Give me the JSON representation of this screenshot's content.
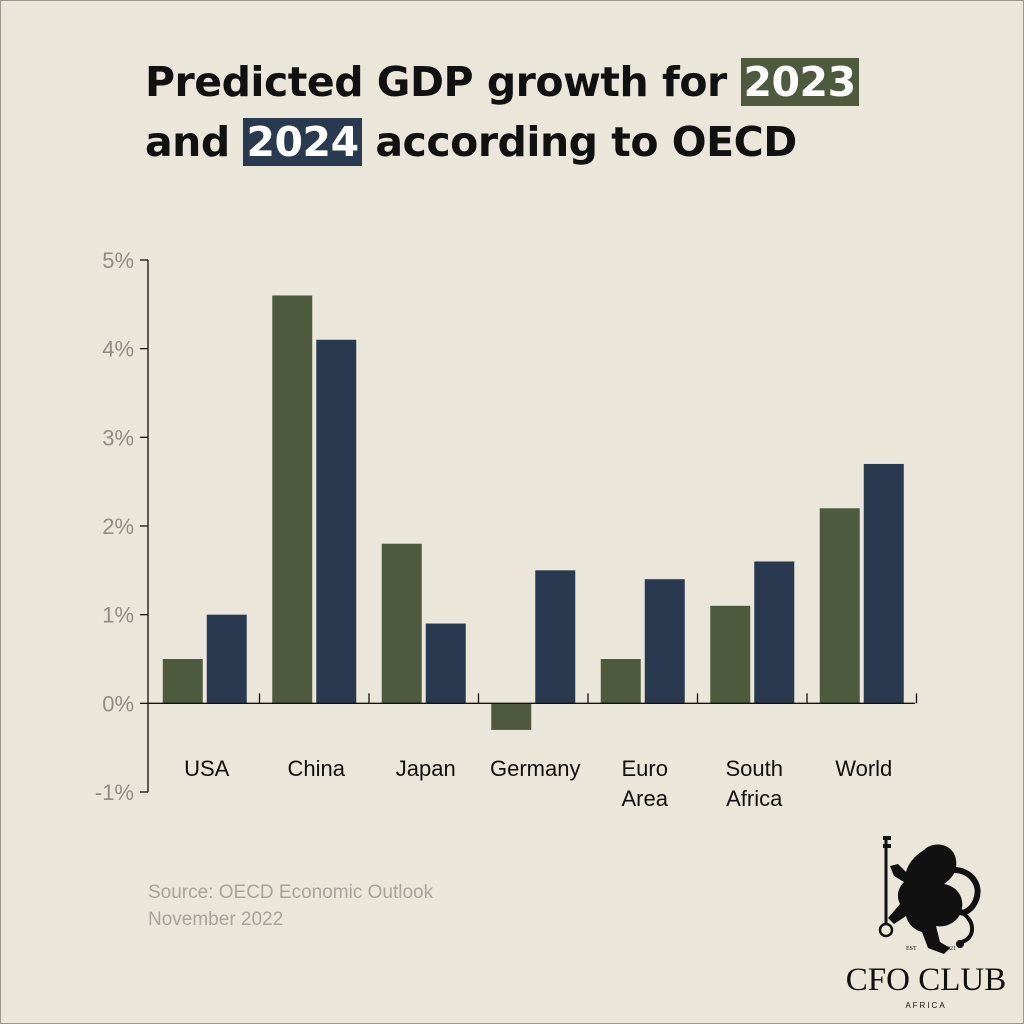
{
  "title": {
    "line1_prefix": "Predicted GDP growth for ",
    "line1_highlight": "2023",
    "line2_prefix": "and ",
    "line2_highlight": "2024",
    "line2_suffix": " according to OECD"
  },
  "source": {
    "line1": "Source: OECD Economic Outlook",
    "line2": "November 2022"
  },
  "logo": {
    "name": "CFO CLUB",
    "sub": "AFRICA",
    "est": "EST",
    "year": "2021"
  },
  "colors": {
    "background": "#ebe6da",
    "series_2023": "#4e5a3d",
    "series_2024": "#293a50",
    "axis": "#111111",
    "tick_text": "#8f8c85"
  },
  "chart_data": {
    "type": "bar",
    "categories": [
      [
        "USA"
      ],
      [
        "China"
      ],
      [
        "Japan"
      ],
      [
        "Germany"
      ],
      [
        "Euro",
        "Area"
      ],
      [
        "South",
        "Africa"
      ],
      [
        "World"
      ]
    ],
    "series": [
      {
        "name": "2023",
        "values": [
          0.5,
          4.6,
          1.8,
          -0.3,
          0.5,
          1.1,
          2.2
        ]
      },
      {
        "name": "2024",
        "values": [
          1.0,
          4.1,
          0.9,
          1.5,
          1.4,
          1.6,
          2.7
        ]
      }
    ],
    "ylim": [
      -1,
      5
    ],
    "yticks": [
      "-1%",
      "0%",
      "1%",
      "2%",
      "3%",
      "4%",
      "5%"
    ],
    "legend": "title"
  }
}
